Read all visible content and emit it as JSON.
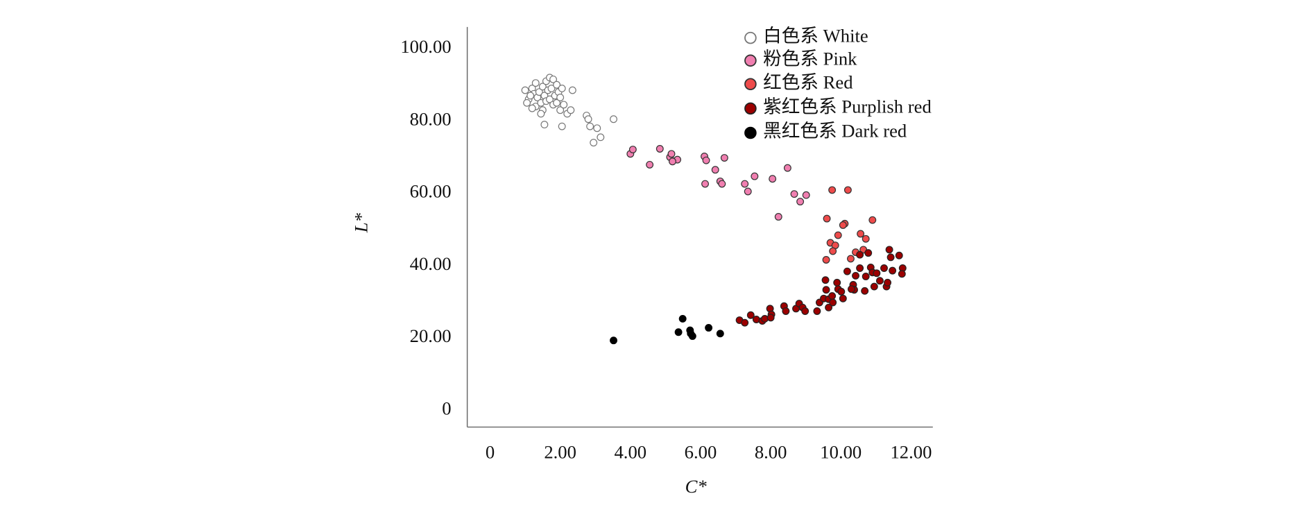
{
  "chart_data": {
    "type": "scatter",
    "x_label": "C*",
    "y_label": "L*",
    "xlim": [
      -0.65,
      12.62
    ],
    "ylim": [
      -4.65,
      106
    ],
    "xticks": [
      0,
      {
        "value": 2,
        "label": "2.00"
      },
      {
        "value": 4,
        "label": "4.00"
      },
      {
        "value": 6,
        "label": "6.00"
      },
      {
        "value": 8,
        "label": "8.00"
      },
      {
        "value": 10,
        "label": "10.00"
      },
      {
        "value": 12,
        "label": "12.00"
      }
    ],
    "yticks": [
      0,
      {
        "value": 20,
        "label": "20.00"
      },
      {
        "value": 40,
        "label": "40.00"
      },
      {
        "value": 60,
        "label": "60.00"
      },
      {
        "value": 80,
        "label": "80.00"
      },
      {
        "value": 100,
        "label": "100.00"
      }
    ],
    "grid": false,
    "legend": "top-right",
    "series": [
      {
        "name": "白色系 White",
        "color": "#ffffff",
        "edge": "#777777",
        "x": [
          1.0,
          1.1,
          1.05,
          1.2,
          1.25,
          1.3,
          1.3,
          1.35,
          1.4,
          1.45,
          1.5,
          1.5,
          1.55,
          1.6,
          1.6,
          1.65,
          1.7,
          1.7,
          1.75,
          1.8,
          1.8,
          1.85,
          1.9,
          1.9,
          1.95,
          2.0,
          2.0,
          2.05,
          2.1,
          2.2,
          2.3,
          2.35,
          1.55,
          1.45,
          2.05,
          2.75,
          2.8,
          2.85,
          3.05,
          2.95,
          3.15,
          3.52,
          1.2,
          1.15
        ],
        "values": [
          88.5,
          86,
          85,
          89,
          87.5,
          84,
          90.5,
          86.5,
          88,
          85,
          89.5,
          83,
          87,
          91,
          85.5,
          88.5,
          92,
          86,
          89,
          91.5,
          84.5,
          87,
          90,
          85,
          88,
          86.5,
          83,
          89,
          84.5,
          82,
          83,
          88.5,
          79,
          82,
          78.5,
          81.5,
          80.5,
          78.5,
          78,
          74,
          75.5,
          80.5,
          83.5,
          87
        ]
      },
      {
        "name": "粉色系 Pink",
        "color": "#f07fb0",
        "edge": "#333333",
        "x": [
          4.0,
          4.07,
          4.84,
          5.13,
          5.17,
          5.34,
          5.2,
          4.55,
          6.11,
          6.16,
          6.42,
          6.68,
          6.13,
          6.56,
          6.61,
          7.26,
          7.35,
          7.54,
          8.05,
          8.48,
          8.22,
          8.67,
          8.84,
          9.01
        ],
        "values": [
          70.9,
          72.1,
          72.3,
          70.0,
          70.9,
          69.3,
          68.8,
          67.9,
          70.2,
          69.1,
          66.5,
          69.8,
          62.6,
          63.3,
          62.6,
          62.6,
          60.5,
          64.7,
          64.0,
          67.0,
          53.5,
          59.8,
          57.7,
          59.5
        ]
      },
      {
        "name": "红色系 Red",
        "color": "#ee4b4b",
        "edge": "#333333",
        "x": [
          9.75,
          10.2,
          9.6,
          10.11,
          10.06,
          10.9,
          10.56,
          10.71,
          9.92,
          9.7,
          9.84,
          9.77,
          10.42,
          10.64,
          10.28,
          9.58
        ],
        "values": [
          60.9,
          60.9,
          53.0,
          51.6,
          51.2,
          52.6,
          48.8,
          47.4,
          48.4,
          46.3,
          45.6,
          44.0,
          43.7,
          44.4,
          41.9,
          41.6
        ]
      },
      {
        "name": "紫红色系 Purplish red",
        "color": "#9b0000",
        "edge": "#222222",
        "x": [
          7.11,
          7.26,
          7.43,
          7.59,
          7.76,
          7.83,
          7.98,
          8.02,
          8.0,
          8.38,
          8.43,
          8.72,
          8.81,
          8.91,
          8.98,
          9.32,
          9.39,
          9.51,
          9.65,
          9.58,
          9.75,
          9.92,
          10.01,
          10.06,
          9.56,
          9.89,
          10.18,
          10.35,
          10.42,
          10.54,
          10.71,
          10.85,
          10.9,
          11.02,
          11.11,
          11.23,
          11.38,
          11.42,
          11.47,
          11.66,
          11.76,
          11.74,
          10.78,
          10.54,
          10.68,
          10.95,
          11.3,
          11.33,
          10.38,
          10.3,
          9.65,
          9.77
        ],
        "values": [
          24.9,
          24.2,
          26.3,
          25.1,
          24.7,
          25.3,
          28.1,
          26.5,
          25.6,
          28.8,
          27.4,
          28.1,
          29.5,
          28.4,
          27.4,
          27.4,
          29.8,
          30.9,
          30.7,
          33.3,
          31.6,
          33.5,
          32.8,
          30.9,
          36.0,
          35.3,
          38.4,
          34.7,
          37.2,
          39.3,
          37.0,
          39.5,
          38.1,
          37.9,
          35.8,
          39.3,
          44.4,
          42.3,
          38.6,
          42.8,
          39.3,
          37.7,
          43.5,
          43.0,
          33.0,
          34.2,
          34.2,
          35.3,
          33.3,
          33.5,
          28.4,
          29.8
        ]
      },
      {
        "name": "黑红色系 Dark red",
        "color": "#000000",
        "edge": "#000000",
        "x": [
          3.52,
          5.49,
          5.37,
          5.7,
          5.77,
          5.72,
          6.23,
          6.56
        ],
        "values": [
          19.3,
          25.3,
          21.6,
          22.1,
          20.5,
          21.2,
          22.8,
          21.2
        ]
      }
    ]
  }
}
